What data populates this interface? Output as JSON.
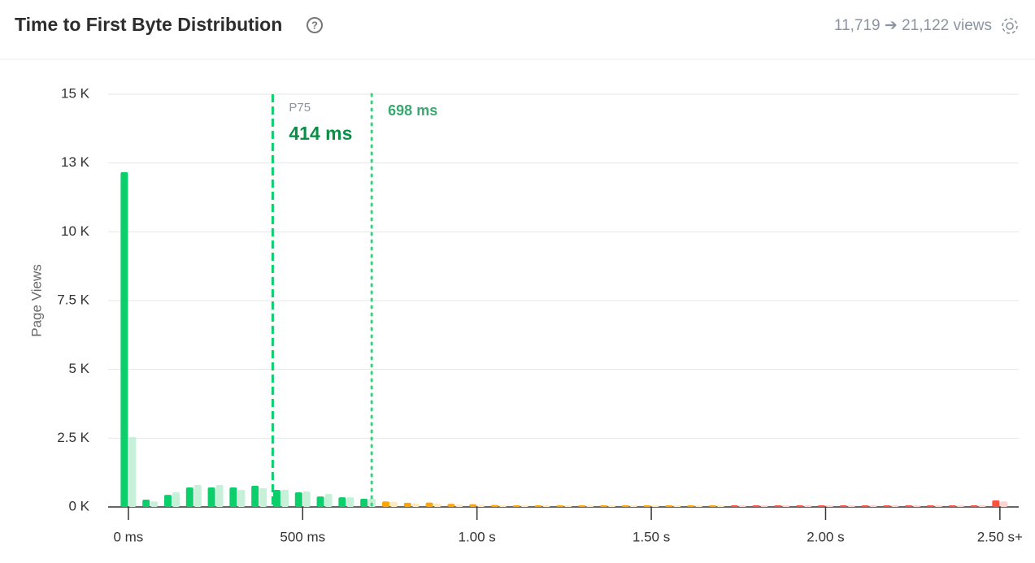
{
  "header": {
    "title": "Time to First Byte Distribution",
    "views": "11,719 ➔ 21,122 views"
  },
  "chart_data": {
    "type": "bar",
    "y_label": "Page Views",
    "x": [
      0,
      62.5,
      125,
      187.5,
      250,
      312.5,
      375,
      437.5,
      500,
      562.5,
      625,
      687.5,
      750,
      812.5,
      875,
      937.5,
      1000,
      1062.5,
      1125,
      1187.5,
      1250,
      1312.5,
      1375,
      1437.5,
      1500,
      1562.5,
      1625,
      1687.5,
      1750,
      1812.5,
      1875,
      1937.5,
      2000,
      2062.5,
      2125,
      2187.5,
      2250,
      2312.5,
      2375,
      2437.5,
      2500
    ],
    "series": [
      {
        "colors": [
          "#0cce6b",
          "#0cce6b",
          "#0cce6b",
          "#0cce6b",
          "#0cce6b",
          "#0cce6b",
          "#0cce6b",
          "#0cce6b",
          "#0cce6b",
          "#0cce6b",
          "#0cce6b",
          "#0cce6b",
          "#ffa400",
          "#ffa400",
          "#ffa400",
          "#ffa400",
          "#ffa400",
          "#ffa400",
          "#ffa400",
          "#ffa400",
          "#ffa400",
          "#ffa400",
          "#ffa400",
          "#ffa400",
          "#ffa400",
          "#ffa400",
          "#ffa400",
          "#ffa400",
          "#ff4e42",
          "#ff4e42",
          "#ff4e42",
          "#ff4e42",
          "#ff4e42",
          "#ff4e42",
          "#ff4e42",
          "#ff4e42",
          "#ff4e42",
          "#ff4e42",
          "#ff4e42",
          "#ff4e42",
          "#ff4e42"
        ],
        "values": [
          12170,
          265,
          440,
          710,
          710,
          710,
          770,
          620,
          530,
          380,
          350,
          300,
          200,
          150,
          160,
          110,
          100,
          70,
          60,
          40,
          50,
          30,
          40,
          20,
          20,
          20,
          20,
          20,
          10,
          10,
          10,
          10,
          10,
          10,
          10,
          10,
          10,
          10,
          10,
          10,
          240
        ]
      },
      {
        "colors": [
          "#c6f1d8",
          "#c6f1d8",
          "#c6f1d8",
          "#c6f1d8",
          "#c6f1d8",
          "#c6f1d8",
          "#c6f1d8",
          "#c6f1d8",
          "#c6f1d8",
          "#c6f1d8",
          "#c6f1d8",
          "#c6f1d8",
          "#ffe9bf",
          "#ffe9bf",
          "#ffe9bf",
          "#ffe9bf",
          "#ffe9bf",
          "#ffe9bf",
          "#ffe9bf",
          "#ffe9bf",
          "#ffe9bf",
          "#ffe9bf",
          "#ffe9bf",
          "#ffe9bf",
          "#ffe9bf",
          "#ffe9bf",
          "#ffe9bf",
          "#ffe9bf",
          "#ffd2cf",
          "#ffd2cf",
          "#ffd2cf",
          "#ffd2cf",
          "#ffd2cf",
          "#ffd2cf",
          "#ffd2cf",
          "#ffd2cf",
          "#ffd2cf",
          "#ffd2cf",
          "#ffd2cf",
          "#ffd2cf",
          "#ffd2cf"
        ],
        "values": [
          2540,
          200,
          530,
          800,
          800,
          620,
          680,
          620,
          560,
          470,
          350,
          300,
          180,
          130,
          120,
          90,
          80,
          60,
          50,
          40,
          40,
          30,
          30,
          20,
          20,
          20,
          20,
          20,
          10,
          10,
          10,
          10,
          10,
          10,
          10,
          10,
          10,
          10,
          10,
          10,
          200
        ]
      }
    ],
    "xlim": [
      -58,
      2554
    ],
    "xticks": [
      {
        "value": 0,
        "label": "0 ms"
      },
      {
        "value": 500,
        "label": "500 ms"
      },
      {
        "value": 1000,
        "label": "1.00 s"
      },
      {
        "value": 1500,
        "label": "1.50 s"
      },
      {
        "value": 2000,
        "label": "2.00 s"
      },
      {
        "value": 2500,
        "label": "2.50 s+"
      }
    ],
    "ylim": [
      0,
      15000
    ],
    "yticks": [
      {
        "value": 0,
        "label": "0 K"
      },
      {
        "value": 2500,
        "label": "2.5 K"
      },
      {
        "value": 5000,
        "label": "5 K"
      },
      {
        "value": 7500,
        "label": "7.5 K"
      },
      {
        "value": 10000,
        "label": "10 K"
      },
      {
        "value": 12500,
        "label": "13 K"
      },
      {
        "value": 15000,
        "label": "15 K"
      }
    ],
    "grid": true,
    "markers": [
      {
        "value": 414,
        "name": "P75",
        "label": "414 ms",
        "color": "#0cce6b",
        "style": "dashed"
      },
      {
        "value": 698,
        "label": "698 ms",
        "color": "#3ecf82",
        "style": "dotted"
      }
    ]
  }
}
